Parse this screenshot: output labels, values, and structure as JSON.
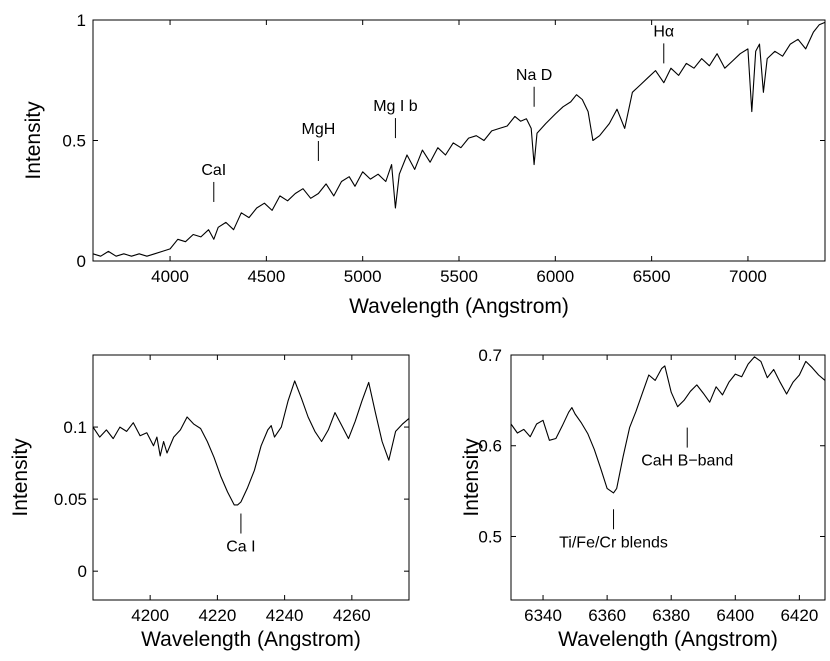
{
  "chart_data": [
    {
      "type": "line",
      "panel": "top",
      "title": "",
      "xlabel": "Wavelength (Angstrom)",
      "ylabel": "Intensity",
      "xlim": [
        3600,
        7400
      ],
      "ylim": [
        0,
        1
      ],
      "xticks": [
        4000,
        4500,
        5000,
        5500,
        6000,
        6500,
        7000
      ],
      "yticks": [
        0,
        0.5,
        1
      ],
      "ytick_labels": [
        "0",
        "0.5",
        "1"
      ],
      "annotations": [
        {
          "text": "CaI",
          "x": 4227,
          "y": 0.245
        },
        {
          "text": "MgH",
          "x": 4770,
          "y": 0.415
        },
        {
          "text": "Mg I b",
          "x": 5170,
          "y": 0.51
        },
        {
          "text": "Na D",
          "x": 5890,
          "y": 0.64
        },
        {
          "text": "Hα",
          "x": 6563,
          "y": 0.82
        }
      ],
      "series": [
        {
          "name": "spectrum",
          "points": [
            [
              3600,
              0.03
            ],
            [
              3640,
              0.02
            ],
            [
              3680,
              0.04
            ],
            [
              3720,
              0.02
            ],
            [
              3760,
              0.03
            ],
            [
              3800,
              0.02
            ],
            [
              3840,
              0.03
            ],
            [
              3880,
              0.02
            ],
            [
              3920,
              0.03
            ],
            [
              3960,
              0.04
            ],
            [
              4000,
              0.05
            ],
            [
              4040,
              0.09
            ],
            [
              4080,
              0.08
            ],
            [
              4120,
              0.11
            ],
            [
              4160,
              0.1
            ],
            [
              4200,
              0.13
            ],
            [
              4227,
              0.09
            ],
            [
              4250,
              0.14
            ],
            [
              4290,
              0.16
            ],
            [
              4330,
              0.13
            ],
            [
              4370,
              0.2
            ],
            [
              4410,
              0.18
            ],
            [
              4450,
              0.22
            ],
            [
              4490,
              0.24
            ],
            [
              4530,
              0.21
            ],
            [
              4570,
              0.27
            ],
            [
              4610,
              0.25
            ],
            [
              4650,
              0.28
            ],
            [
              4690,
              0.3
            ],
            [
              4730,
              0.26
            ],
            [
              4770,
              0.28
            ],
            [
              4810,
              0.32
            ],
            [
              4850,
              0.27
            ],
            [
              4890,
              0.33
            ],
            [
              4930,
              0.35
            ],
            [
              4960,
              0.31
            ],
            [
              5000,
              0.37
            ],
            [
              5040,
              0.34
            ],
            [
              5080,
              0.36
            ],
            [
              5120,
              0.33
            ],
            [
              5150,
              0.4
            ],
            [
              5170,
              0.22
            ],
            [
              5190,
              0.36
            ],
            [
              5230,
              0.44
            ],
            [
              5270,
              0.38
            ],
            [
              5310,
              0.46
            ],
            [
              5350,
              0.41
            ],
            [
              5390,
              0.47
            ],
            [
              5430,
              0.44
            ],
            [
              5470,
              0.49
            ],
            [
              5510,
              0.47
            ],
            [
              5550,
              0.51
            ],
            [
              5590,
              0.52
            ],
            [
              5630,
              0.5
            ],
            [
              5670,
              0.54
            ],
            [
              5710,
              0.55
            ],
            [
              5750,
              0.56
            ],
            [
              5790,
              0.6
            ],
            [
              5820,
              0.58
            ],
            [
              5850,
              0.59
            ],
            [
              5875,
              0.55
            ],
            [
              5890,
              0.4
            ],
            [
              5905,
              0.53
            ],
            [
              5950,
              0.57
            ],
            [
              6000,
              0.61
            ],
            [
              6040,
              0.64
            ],
            [
              6080,
              0.66
            ],
            [
              6110,
              0.69
            ],
            [
              6140,
              0.67
            ],
            [
              6170,
              0.62
            ],
            [
              6195,
              0.5
            ],
            [
              6230,
              0.52
            ],
            [
              6280,
              0.57
            ],
            [
              6320,
              0.63
            ],
            [
              6360,
              0.55
            ],
            [
              6400,
              0.7
            ],
            [
              6440,
              0.73
            ],
            [
              6480,
              0.76
            ],
            [
              6520,
              0.79
            ],
            [
              6563,
              0.74
            ],
            [
              6600,
              0.8
            ],
            [
              6640,
              0.77
            ],
            [
              6680,
              0.82
            ],
            [
              6720,
              0.8
            ],
            [
              6760,
              0.84
            ],
            [
              6800,
              0.81
            ],
            [
              6840,
              0.86
            ],
            [
              6880,
              0.8
            ],
            [
              6920,
              0.83
            ],
            [
              6960,
              0.86
            ],
            [
              7000,
              0.88
            ],
            [
              7020,
              0.62
            ],
            [
              7040,
              0.87
            ],
            [
              7060,
              0.9
            ],
            [
              7080,
              0.7
            ],
            [
              7100,
              0.84
            ],
            [
              7140,
              0.87
            ],
            [
              7180,
              0.85
            ],
            [
              7220,
              0.9
            ],
            [
              7260,
              0.92
            ],
            [
              7300,
              0.88
            ],
            [
              7340,
              0.95
            ],
            [
              7370,
              0.98
            ],
            [
              7400,
              0.99
            ]
          ]
        }
      ]
    },
    {
      "type": "line",
      "panel": "bottom-left",
      "title": "",
      "xlabel": "Wavelength (Angstrom)",
      "ylabel": "Intensity",
      "xlim": [
        4183,
        4277
      ],
      "ylim": [
        -0.02,
        0.15
      ],
      "xticks": [
        4200,
        4220,
        4240,
        4260
      ],
      "yticks": [
        0,
        0.05,
        0.1
      ],
      "ytick_labels": [
        "0",
        "0.05",
        "0.1"
      ],
      "annotations": [
        {
          "text": "Ca I",
          "x": 4227,
          "y": 0.04
        }
      ],
      "series": [
        {
          "name": "spectrum",
          "points": [
            [
              4183,
              0.1
            ],
            [
              4185,
              0.093
            ],
            [
              4187,
              0.098
            ],
            [
              4189,
              0.092
            ],
            [
              4191,
              0.1
            ],
            [
              4193,
              0.097
            ],
            [
              4195,
              0.103
            ],
            [
              4197,
              0.094
            ],
            [
              4199,
              0.096
            ],
            [
              4201,
              0.087
            ],
            [
              4202,
              0.093
            ],
            [
              4203,
              0.08
            ],
            [
              4204,
              0.09
            ],
            [
              4205,
              0.082
            ],
            [
              4207,
              0.093
            ],
            [
              4209,
              0.098
            ],
            [
              4211,
              0.107
            ],
            [
              4213,
              0.102
            ],
            [
              4215,
              0.099
            ],
            [
              4217,
              0.09
            ],
            [
              4219,
              0.079
            ],
            [
              4221,
              0.066
            ],
            [
              4223,
              0.055
            ],
            [
              4225,
              0.046
            ],
            [
              4226,
              0.046
            ],
            [
              4227,
              0.048
            ],
            [
              4229,
              0.058
            ],
            [
              4231,
              0.07
            ],
            [
              4233,
              0.087
            ],
            [
              4235,
              0.098
            ],
            [
              4236,
              0.101
            ],
            [
              4237,
              0.093
            ],
            [
              4239,
              0.1
            ],
            [
              4241,
              0.118
            ],
            [
              4243,
              0.132
            ],
            [
              4245,
              0.12
            ],
            [
              4247,
              0.107
            ],
            [
              4249,
              0.097
            ],
            [
              4251,
              0.09
            ],
            [
              4253,
              0.098
            ],
            [
              4255,
              0.11
            ],
            [
              4257,
              0.101
            ],
            [
              4259,
              0.092
            ],
            [
              4261,
              0.104
            ],
            [
              4263,
              0.118
            ],
            [
              4265,
              0.131
            ],
            [
              4267,
              0.11
            ],
            [
              4269,
              0.09
            ],
            [
              4271,
              0.077
            ],
            [
              4273,
              0.097
            ],
            [
              4275,
              0.102
            ],
            [
              4277,
              0.106
            ]
          ]
        }
      ]
    },
    {
      "type": "line",
      "panel": "bottom-right",
      "title": "",
      "xlabel": "Wavelength (Angstrom)",
      "ylabel": "Intensity",
      "xlim": [
        6330,
        6428
      ],
      "ylim": [
        0.43,
        0.7
      ],
      "xticks": [
        6340,
        6360,
        6380,
        6400,
        6420
      ],
      "yticks": [
        0.5,
        0.6,
        0.7
      ],
      "ytick_labels": [
        "0.5",
        "0.6",
        "0.7"
      ],
      "annotations": [
        {
          "text": "CaH B−band",
          "x": 6385,
          "y": 0.62
        },
        {
          "text": "Ti/Fe/Cr blends",
          "x": 6362,
          "y": 0.53
        }
      ],
      "series": [
        {
          "name": "spectrum",
          "points": [
            [
              6330,
              0.624
            ],
            [
              6332,
              0.614
            ],
            [
              6334,
              0.618
            ],
            [
              6336,
              0.61
            ],
            [
              6338,
              0.624
            ],
            [
              6340,
              0.628
            ],
            [
              6342,
              0.606
            ],
            [
              6344,
              0.608
            ],
            [
              6346,
              0.622
            ],
            [
              6348,
              0.637
            ],
            [
              6349,
              0.642
            ],
            [
              6350,
              0.635
            ],
            [
              6352,
              0.625
            ],
            [
              6354,
              0.613
            ],
            [
              6356,
              0.596
            ],
            [
              6358,
              0.575
            ],
            [
              6360,
              0.553
            ],
            [
              6362,
              0.548
            ],
            [
              6363,
              0.553
            ],
            [
              6365,
              0.588
            ],
            [
              6367,
              0.62
            ],
            [
              6369,
              0.638
            ],
            [
              6371,
              0.658
            ],
            [
              6373,
              0.678
            ],
            [
              6375,
              0.672
            ],
            [
              6377,
              0.685
            ],
            [
              6378,
              0.688
            ],
            [
              6380,
              0.659
            ],
            [
              6382,
              0.643
            ],
            [
              6384,
              0.65
            ],
            [
              6386,
              0.66
            ],
            [
              6388,
              0.667
            ],
            [
              6390,
              0.658
            ],
            [
              6392,
              0.648
            ],
            [
              6394,
              0.665
            ],
            [
              6396,
              0.656
            ],
            [
              6398,
              0.67
            ],
            [
              6400,
              0.679
            ],
            [
              6402,
              0.676
            ],
            [
              6404,
              0.69
            ],
            [
              6406,
              0.698
            ],
            [
              6408,
              0.693
            ],
            [
              6410,
              0.675
            ],
            [
              6412,
              0.684
            ],
            [
              6414,
              0.67
            ],
            [
              6416,
              0.657
            ],
            [
              6418,
              0.67
            ],
            [
              6420,
              0.678
            ],
            [
              6422,
              0.693
            ],
            [
              6424,
              0.686
            ],
            [
              6426,
              0.678
            ],
            [
              6428,
              0.672
            ]
          ]
        }
      ]
    }
  ]
}
